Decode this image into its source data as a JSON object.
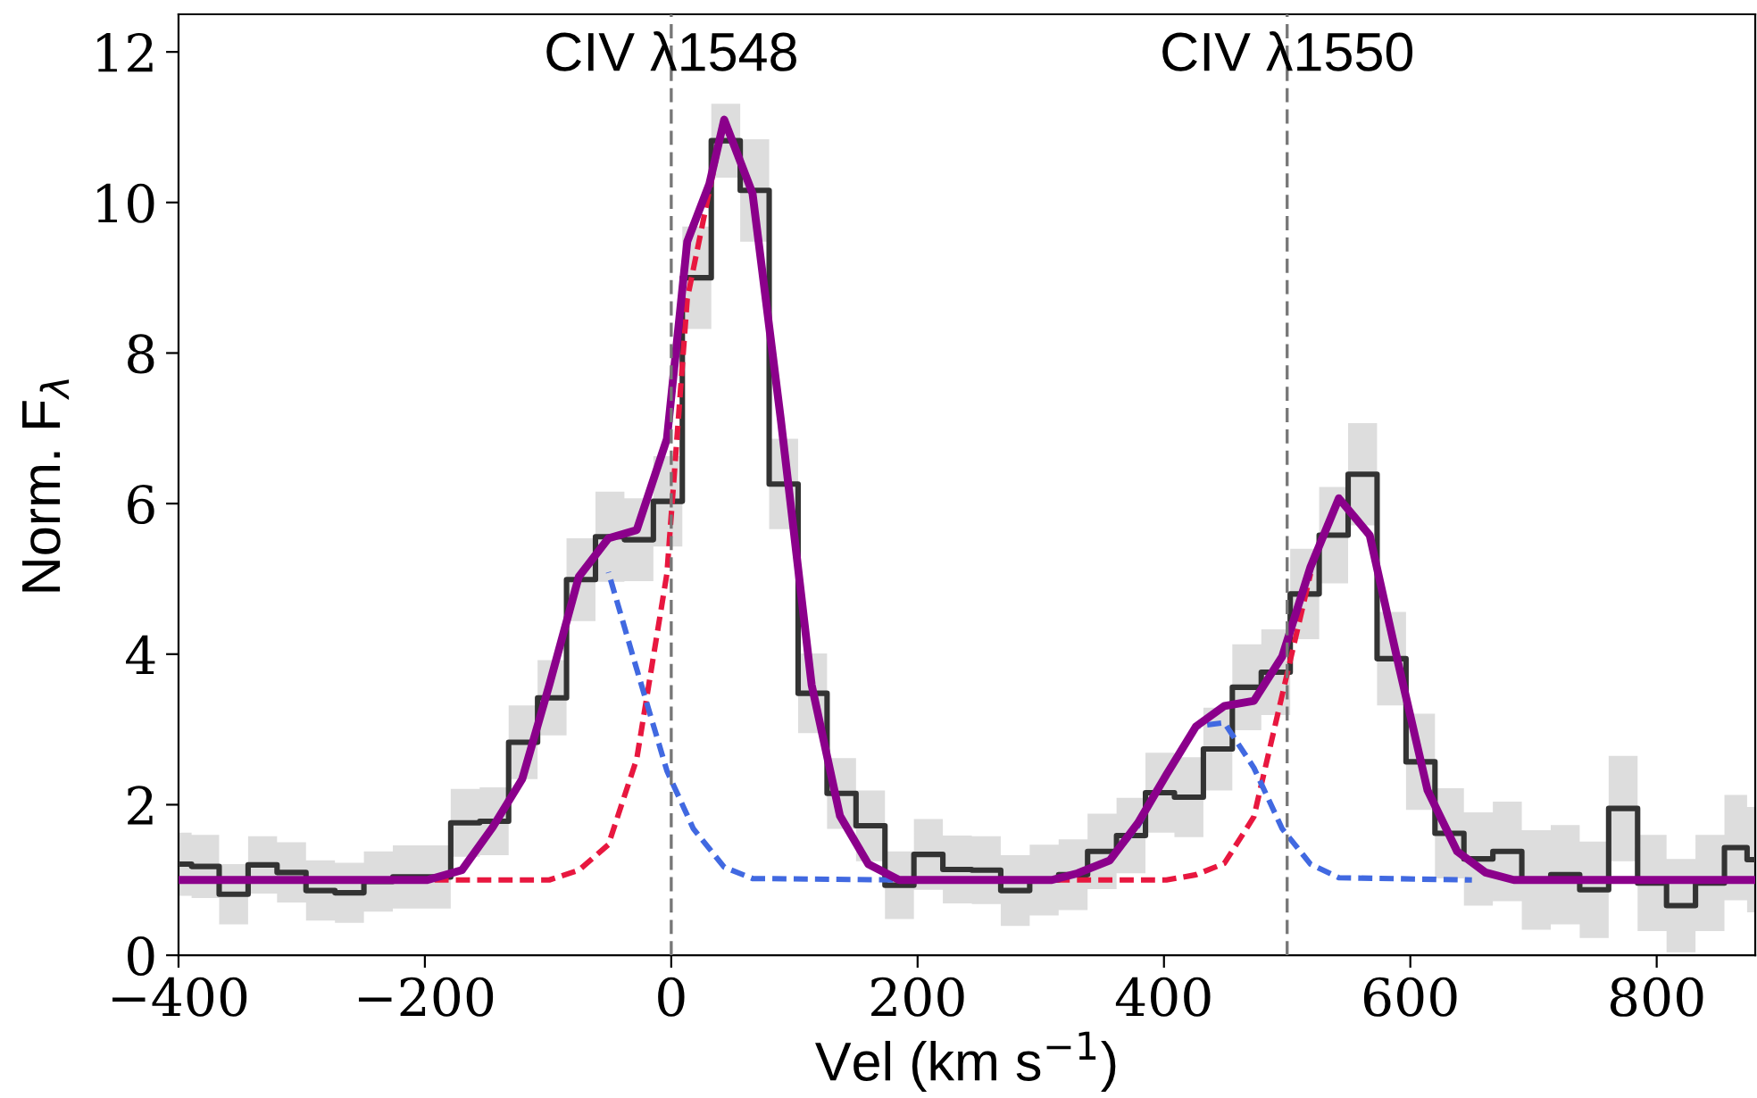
{
  "chart_data": {
    "type": "step",
    "xlabel": "Vel (km s$^{−1}$)",
    "ylabel": "Norm. F$_{λ}$",
    "series": [
      {
        "color": "#333333",
        "x": [
          -400,
          -378.75,
          -355.25,
          -331.75,
          -308.25,
          -284.75,
          -261.25,
          -237.75,
          -214.25,
          -190.75,
          -167.25,
          -143.75,
          -120.25,
          -96.75,
          -73.25,
          -49.75,
          -26.25,
          -2.75,
          20.75,
          44.25,
          67.75,
          91.25,
          114.75,
          138.25,
          161.75,
          185.25,
          208.75,
          232.25,
          255.75,
          279.25,
          302.75,
          326.25,
          349.75,
          373.25,
          396.75,
          420.25,
          443.75,
          467.25,
          490.75,
          514.25,
          537.75,
          561.25,
          584.75,
          608.25,
          631.75,
          655.25,
          678.75,
          702.25,
          725.75,
          749.25,
          772.75,
          796.25,
          819.75,
          843.25,
          866.75,
          880
        ],
        "values": [
          1.21,
          1.18,
          0.81,
          1.2,
          1.1,
          0.86,
          0.83,
          0.98,
          1.04,
          1.04,
          1.76,
          1.78,
          2.83,
          3.42,
          4.99,
          5.56,
          5.52,
          6.03,
          9.0,
          10.82,
          10.16,
          6.26,
          3.48,
          2.15,
          1.72,
          0.93,
          1.34,
          1.14,
          1.13,
          0.86,
          1.0,
          1.07,
          1.38,
          1.59,
          2.16,
          2.1,
          2.74,
          3.56,
          3.76,
          4.8,
          5.58,
          6.39,
          3.94,
          2.57,
          1.62,
          1.28,
          1.38,
          1.0,
          1.07,
          0.87,
          1.95,
          0.96,
          0.66,
          0.96,
          1.43,
          1.27
        ],
        "lower": [
          0.79,
          0.76,
          0.41,
          0.82,
          0.7,
          0.46,
          0.43,
          0.58,
          0.62,
          0.62,
          1.31,
          1.33,
          2.34,
          2.92,
          4.44,
          4.96,
          4.97,
          5.43,
          8.32,
          10.33,
          9.48,
          5.66,
          2.95,
          1.68,
          1.25,
          0.48,
          0.87,
          0.69,
          0.68,
          0.39,
          0.53,
          0.6,
          0.88,
          1.09,
          1.63,
          1.57,
          2.19,
          2.99,
          3.19,
          4.2,
          4.94,
          5.71,
          3.32,
          1.93,
          1.02,
          0.66,
          0.72,
          0.34,
          0.41,
          0.23,
          1.25,
          0.32,
          0.04,
          0.32,
          0.73,
          0.57
        ],
        "upper": [
          1.63,
          1.6,
          1.21,
          1.58,
          1.5,
          1.26,
          1.23,
          1.38,
          1.46,
          1.46,
          2.21,
          2.23,
          3.32,
          3.92,
          5.54,
          6.16,
          6.07,
          6.63,
          9.68,
          11.31,
          10.84,
          6.86,
          4.01,
          2.62,
          2.19,
          1.38,
          1.81,
          1.59,
          1.58,
          1.33,
          1.47,
          1.54,
          1.88,
          2.09,
          2.69,
          2.63,
          3.29,
          4.13,
          4.33,
          5.4,
          6.22,
          7.07,
          4.56,
          3.21,
          2.22,
          1.9,
          2.04,
          1.66,
          1.73,
          1.51,
          2.65,
          1.6,
          1.28,
          1.6,
          2.13,
          1.97
        ]
      },
      {
        "type": "line",
        "color": "#e8173f",
        "line_style": "dashed",
        "x": [
          -198,
          -99,
          -75,
          -51,
          -28,
          -3.5,
          13,
          31,
          43,
          66,
          89,
          114,
          137,
          160,
          185,
          402,
          426,
          449,
          473,
          496,
          519
        ],
        "values": [
          1.0,
          1.0,
          1.13,
          1.47,
          2.61,
          5.07,
          8.72,
          10.16,
          11.1,
          10.12,
          7.11,
          3.59,
          1.85,
          1.21,
          1.0,
          1.0,
          1.07,
          1.22,
          1.84,
          3.46,
          5.07
        ]
      },
      {
        "type": "line",
        "color": "#4169e1",
        "line_style": "dashed",
        "x": [
          -51,
          -28,
          -3.5,
          18,
          43,
          66,
          185,
          309,
          330,
          356,
          379,
          402,
          426,
          449,
          473,
          496,
          519,
          542,
          650
        ],
        "values": [
          5.09,
          3.8,
          2.45,
          1.68,
          1.17,
          1.02,
          1.0,
          1.0,
          1.09,
          1.26,
          1.72,
          2.4,
          3.04,
          3.09,
          2.49,
          1.68,
          1.21,
          1.03,
          1.0
        ]
      },
      {
        "type": "line",
        "color": "#8b008b",
        "line_style": "solid",
        "x": [
          -400,
          -198,
          -170,
          -145,
          -121,
          -99,
          -75,
          -51,
          -28,
          -3.5,
          13,
          31,
          43,
          66,
          89,
          114,
          137,
          160,
          185,
          309,
          330,
          356,
          379,
          402,
          426,
          449,
          473,
          496,
          519,
          542,
          567,
          590,
          614,
          638,
          661,
          684,
          880
        ],
        "values": [
          1.0,
          1.0,
          1.13,
          1.7,
          2.34,
          3.59,
          5.03,
          5.54,
          5.65,
          6.86,
          9.48,
          10.25,
          11.1,
          10.12,
          7.11,
          3.59,
          1.85,
          1.21,
          1.0,
          1.0,
          1.09,
          1.26,
          1.76,
          2.4,
          3.04,
          3.31,
          3.38,
          3.97,
          5.16,
          6.07,
          5.58,
          3.89,
          2.19,
          1.38,
          1.1,
          1.0,
          1.0
        ]
      }
    ],
    "ref_lines": [
      {
        "axis": "x",
        "value": 0,
        "label": "CIV λ1548",
        "color": "#777777",
        "line_style": "dashed"
      },
      {
        "axis": "x",
        "value": 500,
        "label": "CIV λ1550",
        "color": "#777777",
        "line_style": "dashed"
      }
    ],
    "xlim": [
      -400,
      880
    ],
    "ylim": [
      0,
      12.5
    ],
    "xticks": [
      -400,
      -200,
      0,
      200,
      400,
      600,
      800
    ],
    "yticks": [
      0,
      2,
      4,
      6,
      8,
      10,
      12
    ],
    "grid": false,
    "legend": false
  }
}
